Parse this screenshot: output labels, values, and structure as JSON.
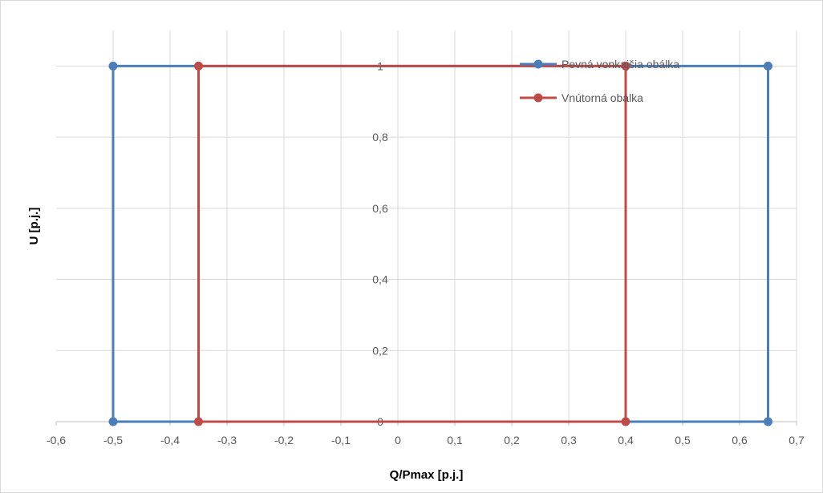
{
  "chart_data": {
    "type": "scatter",
    "xlabel": "Q/Pmax [p.j.]",
    "ylabel": "U [p.j.]",
    "xlim": [
      -0.6,
      0.7
    ],
    "ylim": [
      0,
      1.1
    ],
    "x_ticks": [
      -0.6,
      -0.5,
      -0.4,
      -0.3,
      -0.2,
      -0.1,
      0,
      0.1,
      0.2,
      0.3,
      0.4,
      0.5,
      0.6,
      0.7
    ],
    "x_tick_labels": [
      "-0,6",
      "-0,5",
      "-0,4",
      "-0,3",
      "-0,2",
      "-0,1",
      "0",
      "0,1",
      "0,2",
      "0,3",
      "0,4",
      "0,5",
      "0,6",
      "0,7"
    ],
    "y_ticks": [
      0,
      0.2,
      0.4,
      0.6,
      0.8,
      1
    ],
    "y_tick_labels": [
      "0",
      "0,2",
      "0,4",
      "0,6",
      "0,8",
      "1"
    ],
    "grid": true,
    "legend_position": "top-right",
    "series": [
      {
        "name": "Pevná vonkajšia obálka",
        "color": "#4a7ebb",
        "points": [
          [
            -0.5,
            0
          ],
          [
            -0.5,
            1
          ],
          [
            0.65,
            1
          ],
          [
            0.65,
            0
          ],
          [
            -0.5,
            0
          ]
        ]
      },
      {
        "name": "Vnútorná obálka",
        "color": "#be4b48",
        "points": [
          [
            -0.35,
            0
          ],
          [
            -0.35,
            1
          ],
          [
            0.4,
            1
          ],
          [
            0.4,
            0
          ],
          [
            -0.35,
            0
          ]
        ]
      }
    ]
  }
}
